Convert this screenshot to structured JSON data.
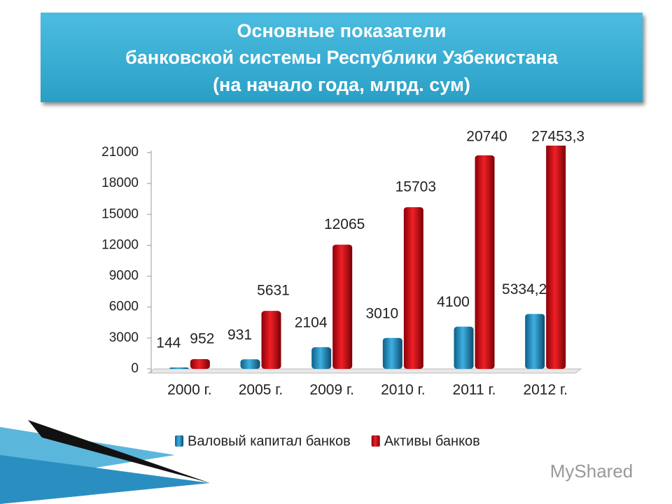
{
  "chart_data": {
    "type": "bar",
    "title": [
      "Основные показатели",
      "банковской системы Республики Узбекистана",
      "(на начало года, млрд. сум)"
    ],
    "categories": [
      "2000 г.",
      "2005 г.",
      "2009 г.",
      "2010 г.",
      "2011 г.",
      "2012 г."
    ],
    "series": [
      {
        "name": "Валовый капитал банков",
        "color": "#2a8fc0",
        "values": [
          144,
          931,
          2104,
          3010,
          4100,
          5334.2
        ],
        "value_labels": [
          "144",
          "931",
          "2104",
          "3010",
          "4100",
          "5334,2"
        ]
      },
      {
        "name": "Активы банков",
        "color": "#d0141a",
        "values": [
          952,
          5631,
          12065,
          15703,
          20740,
          27453.3
        ],
        "value_labels": [
          "952",
          "5631",
          "12065",
          "15703",
          "20740",
          "27453,3"
        ]
      }
    ],
    "ylim": [
      0,
      21000
    ],
    "yticks": [
      0,
      3000,
      6000,
      9000,
      12000,
      15000,
      18000,
      21000
    ],
    "legend": "bottom",
    "watermark": "MyShared"
  }
}
